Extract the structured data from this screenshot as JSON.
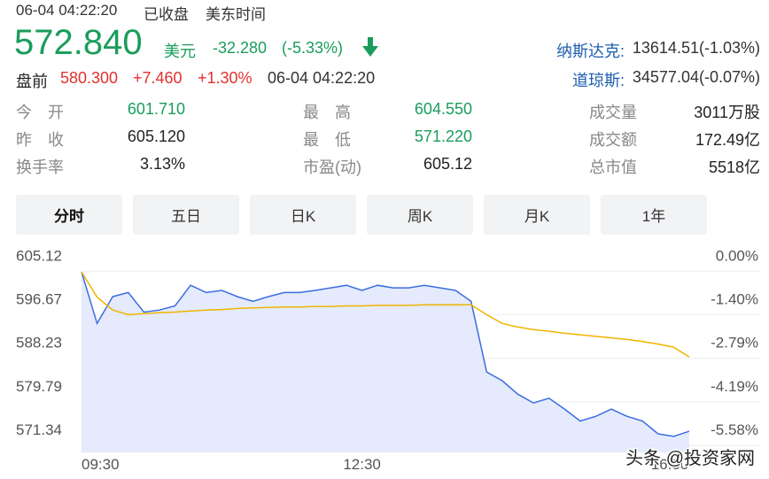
{
  "header": {
    "time": "06-04 04:22:20",
    "status": "已收盘",
    "zone": "美东时间",
    "price": "572.840",
    "currency": "美元",
    "change": "-32.280",
    "change_pct": "(-5.33%)"
  },
  "indices": [
    {
      "name": "纳斯达克:",
      "value": "13614.51(-1.03%)"
    },
    {
      "name": "道琼斯:",
      "value": "34577.04(-0.07%)"
    }
  ],
  "premarket": {
    "label": "盘前",
    "price": "580.300",
    "change": "+7.460",
    "pct": "+1.30%",
    "time": "06-04 04:22:20"
  },
  "stats": [
    {
      "label": "今　开",
      "value": "601.710",
      "color": "#1a9d5c"
    },
    {
      "label": "最　高",
      "value": "604.550",
      "color": "#1a9d5c"
    },
    {
      "label": "成交量",
      "value": "3011万股",
      "color": "#222"
    },
    {
      "label": "昨　收",
      "value": "605.120",
      "color": "#222"
    },
    {
      "label": "最　低",
      "value": "571.220",
      "color": "#1a9d5c"
    },
    {
      "label": "成交额",
      "value": "172.49亿",
      "color": "#222"
    },
    {
      "label": "换手率",
      "value": "3.13%",
      "color": "#222"
    },
    {
      "label": "市盈(动)",
      "value": "605.12",
      "color": "#222"
    },
    {
      "label": "总市值",
      "value": "5518亿",
      "color": "#222"
    }
  ],
  "tabs": [
    "分时",
    "五日",
    "日K",
    "周K",
    "月K",
    "1年"
  ],
  "watermark": "头条 @投资家网",
  "chart_data": {
    "type": "line",
    "x": [
      0,
      10,
      20,
      30,
      40,
      50,
      60,
      70,
      80,
      90,
      100,
      110,
      120,
      130,
      140,
      150,
      160,
      170,
      180,
      190,
      200,
      210,
      220,
      230,
      240,
      250,
      260,
      270,
      280,
      290,
      300,
      310,
      320,
      330,
      340,
      350,
      360,
      370,
      380,
      390
    ],
    "series": [
      {
        "color": "#3b6de0",
        "fill": "#dfe5fb",
        "values": [
          601.9,
          591.9,
          597.1,
          597.9,
          594.1,
          594.5,
          595.3,
          599.3,
          597.9,
          598.3,
          597.1,
          596.2,
          597.1,
          597.9,
          597.9,
          598.3,
          598.8,
          599.3,
          598.3,
          599.3,
          598.8,
          598.8,
          599.3,
          598.8,
          598.3,
          596.2,
          582.5,
          580.8,
          578.2,
          576.5,
          577.4,
          575.3,
          573.0,
          573.9,
          575.3,
          573.9,
          573.0,
          570.5,
          570.0,
          571.0
        ]
      },
      {
        "color": "#f0b400",
        "values": [
          601.9,
          597.0,
          594.5,
          593.6,
          593.8,
          594.0,
          594.1,
          594.3,
          594.5,
          594.6,
          594.8,
          594.9,
          595.0,
          595.1,
          595.1,
          595.2,
          595.2,
          595.3,
          595.3,
          595.4,
          595.4,
          595.4,
          595.5,
          595.5,
          595.5,
          595.5,
          593.6,
          591.9,
          591.2,
          590.7,
          590.4,
          590.0,
          589.7,
          589.4,
          589.1,
          588.8,
          588.4,
          587.9,
          587.3,
          585.4
        ]
      }
    ],
    "xlim": [
      0,
      390
    ],
    "xticks": [
      {
        "value": 0,
        "label": "09:30"
      },
      {
        "value": 180,
        "label": "12:30"
      },
      {
        "value": 390,
        "label": "16:00"
      }
    ],
    "ylim": [
      566.9,
      607.4
    ],
    "yticks": [
      605.12,
      596.67,
      588.23,
      579.79,
      571.34
    ],
    "y2lim": [
      -6.316,
      0.377
    ],
    "y2ticks": [
      {
        "value": 0,
        "label": "0.00%"
      },
      {
        "value": -1.4,
        "label": "-1.40%"
      },
      {
        "value": -2.79,
        "label": "-2.79%"
      },
      {
        "value": -4.19,
        "label": "-4.19%"
      },
      {
        "value": -5.58,
        "label": "-5.58%"
      }
    ],
    "grid": true
  }
}
